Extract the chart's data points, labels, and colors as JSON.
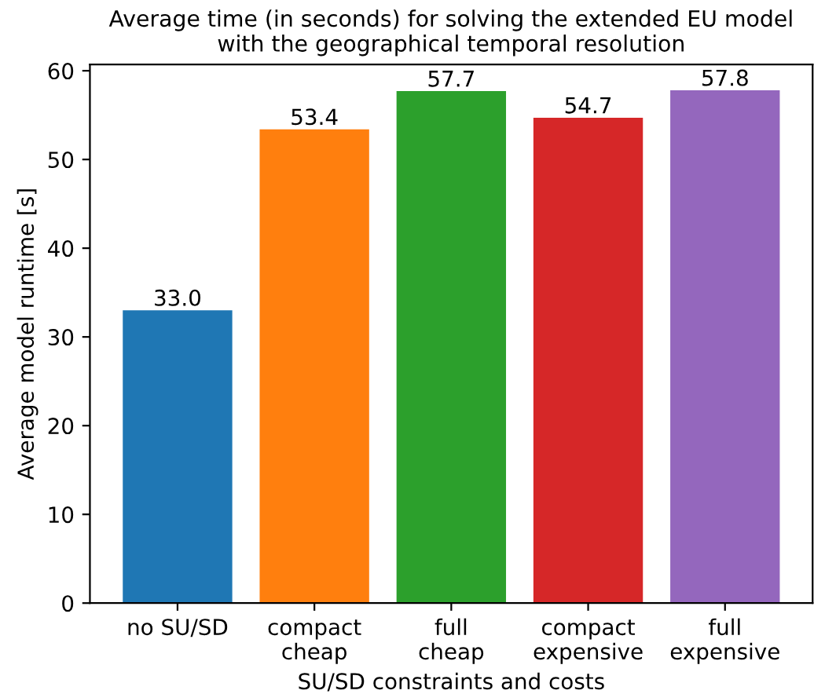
{
  "chart_data": {
    "type": "bar",
    "title": "Average time (in seconds) for solving the extended EU model\nwith the geographical temporal resolution",
    "xlabel": "SU/SD constraints and costs",
    "ylabel": "Average model runtime [s]",
    "categories": [
      "no SU/SD",
      "compact\ncheap",
      "full\ncheap",
      "compact\nexpensive",
      "full\nexpensive"
    ],
    "values": [
      33.0,
      53.4,
      57.7,
      54.7,
      57.8
    ],
    "value_labels": [
      "33.0",
      "53.4",
      "57.7",
      "54.7",
      "57.8"
    ],
    "colors": [
      "#1f77b4",
      "#ff7f0e",
      "#2ca02c",
      "#d62728",
      "#9467bd"
    ],
    "ylim": [
      0,
      60.7
    ],
    "yticks": [
      0,
      10,
      20,
      30,
      40,
      50,
      60
    ],
    "grid": false
  }
}
